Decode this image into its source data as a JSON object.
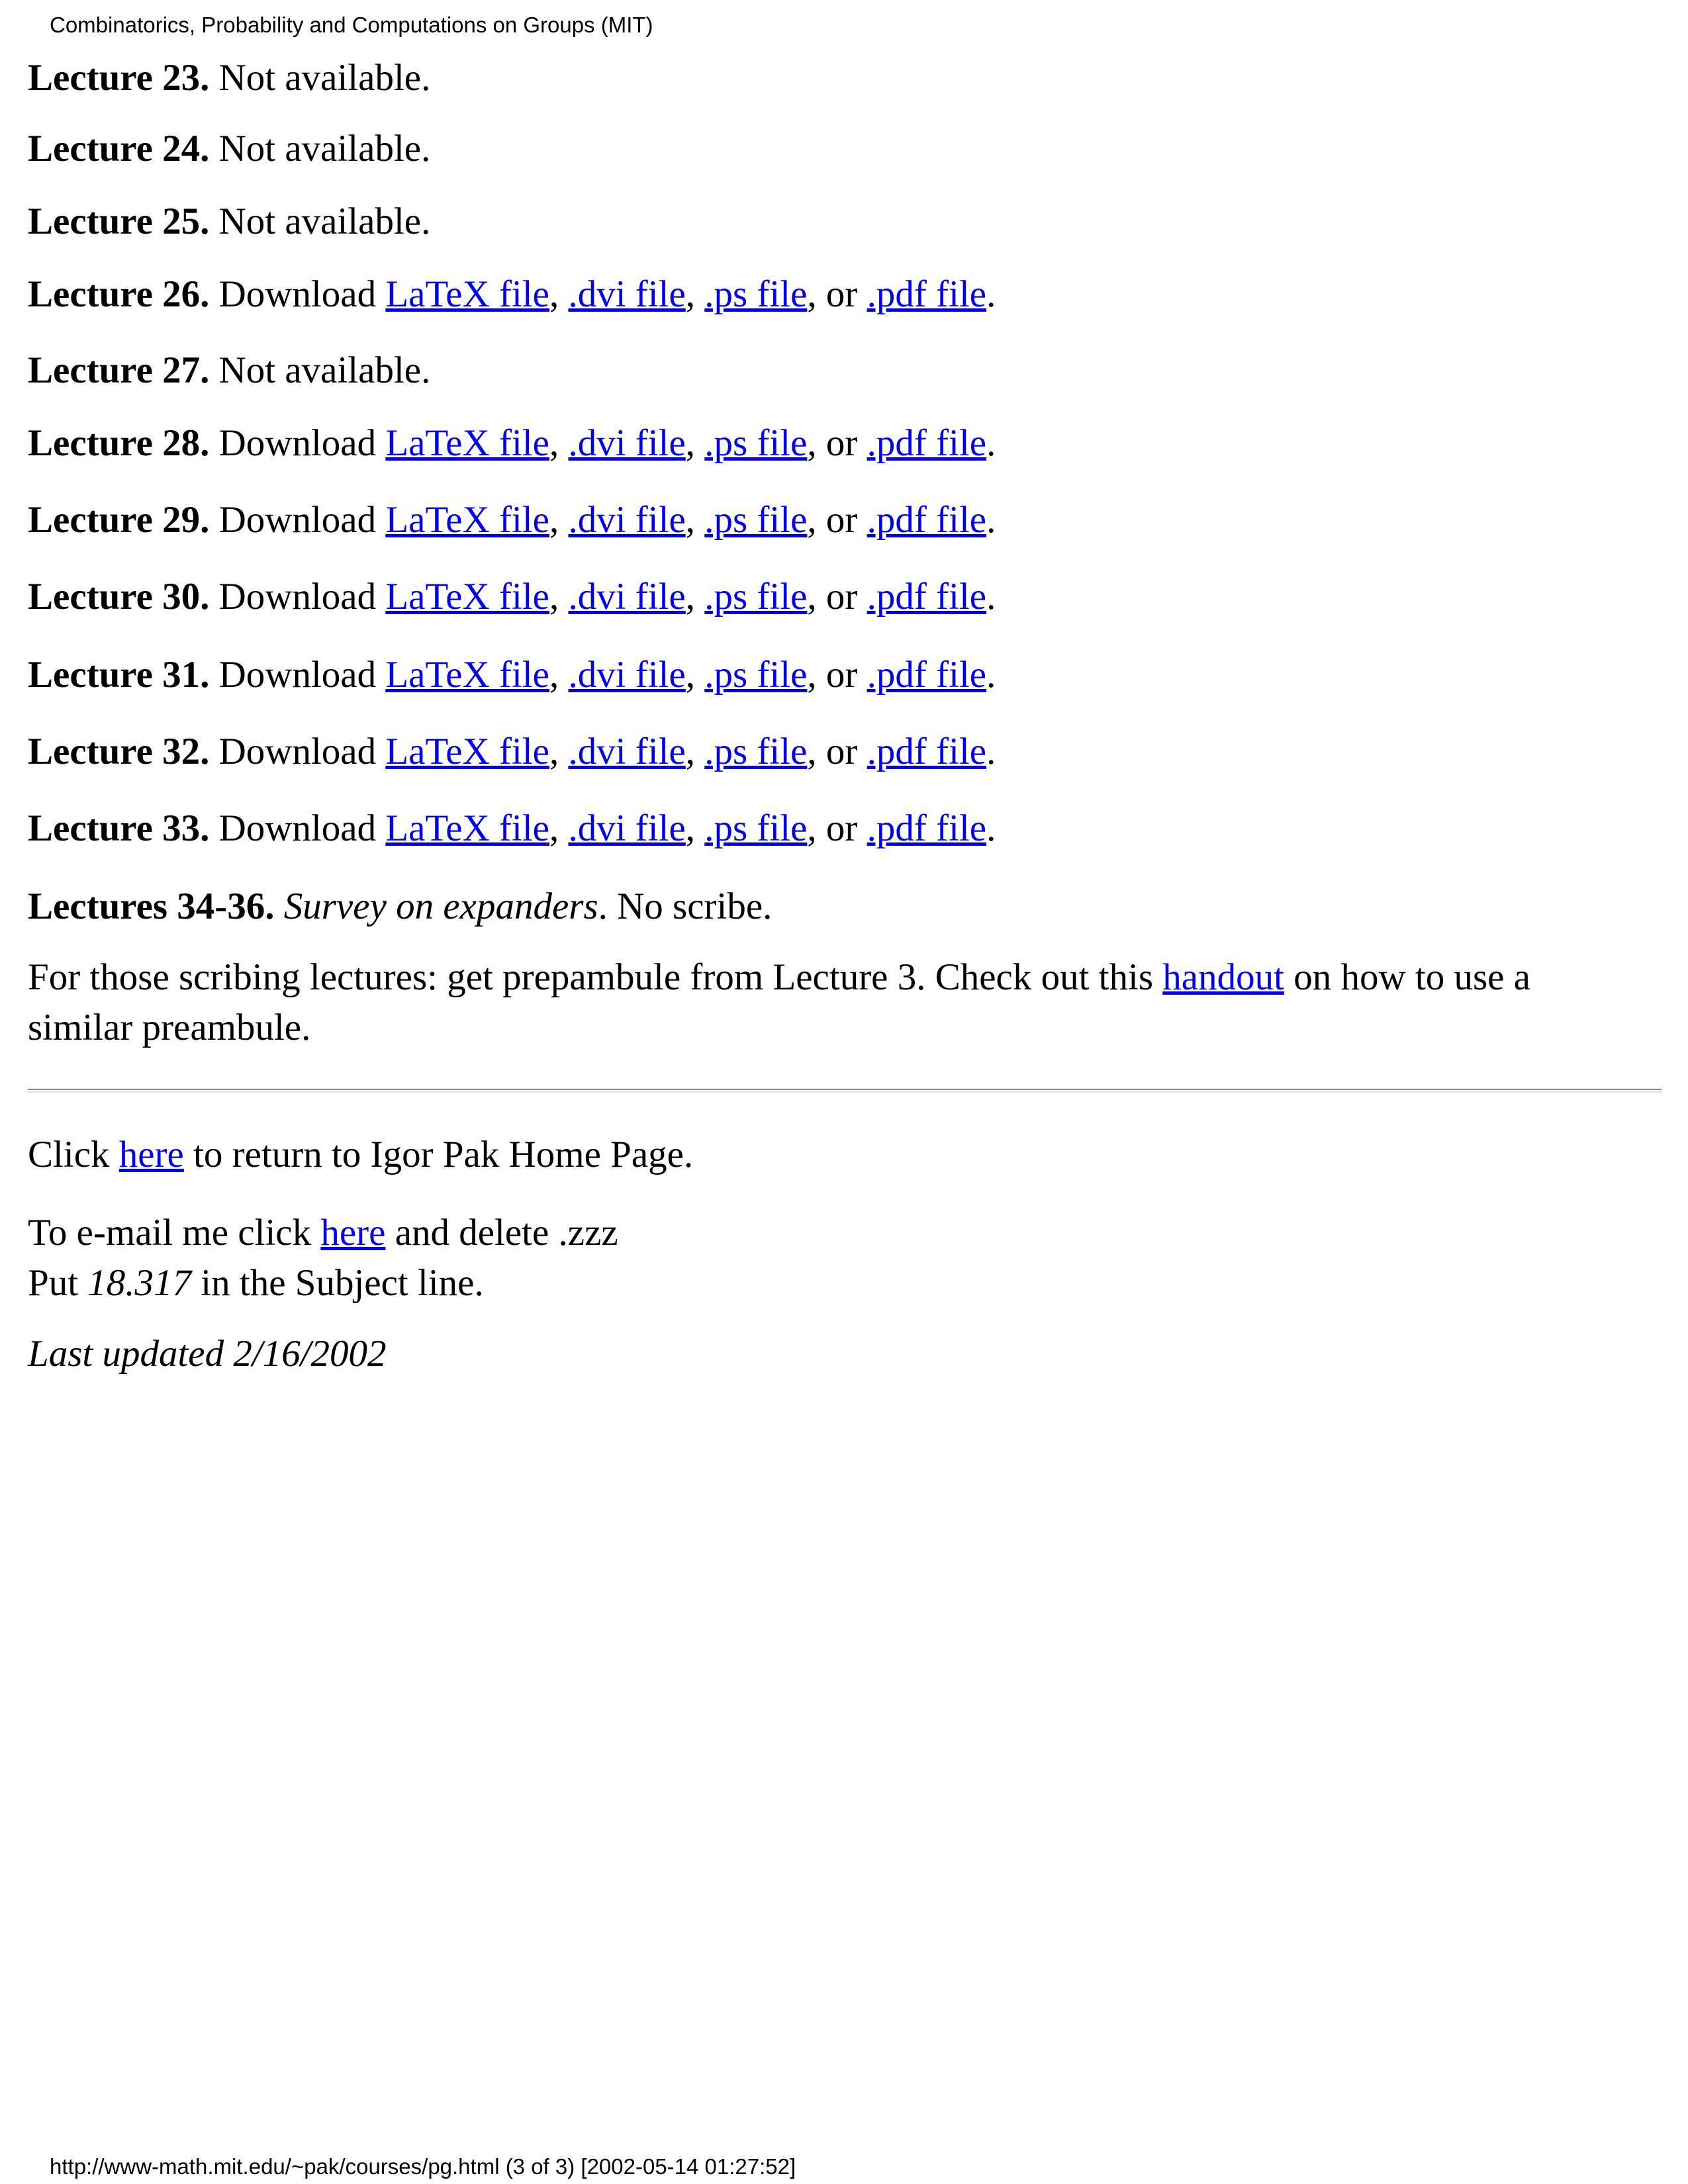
{
  "header": "Combinatorics, Probability and Computations on Groups (MIT)",
  "paragraphs": [
    [
      [
        {
          "text": "Lecture 23.",
          "style": "bold"
        },
        {
          "text": " Not available."
        }
      ]
    ],
    [
      [
        {
          "text": "Lecture 24.",
          "style": "bold"
        },
        {
          "text": " Not available."
        }
      ]
    ],
    [
      [
        {
          "text": "Lecture 25.",
          "style": "bold"
        },
        {
          "text": " Not available."
        }
      ]
    ],
    [
      [
        {
          "text": "Lecture 26.",
          "style": "bold"
        },
        {
          "text": " Download "
        },
        {
          "text": "LaTeX file",
          "style": "link"
        },
        {
          "text": ", "
        },
        {
          "text": ".dvi file",
          "style": "link"
        },
        {
          "text": ", "
        },
        {
          "text": ".ps file",
          "style": "link"
        },
        {
          "text": ", or "
        },
        {
          "text": ".pdf file",
          "style": "link"
        },
        {
          "text": "."
        }
      ]
    ],
    [
      [
        {
          "text": "Lecture 27.",
          "style": "bold"
        },
        {
          "text": " Not available."
        }
      ]
    ],
    [
      [
        {
          "text": "Lecture 28.",
          "style": "bold"
        },
        {
          "text": " Download "
        },
        {
          "text": "LaTeX file",
          "style": "link"
        },
        {
          "text": ", "
        },
        {
          "text": ".dvi file",
          "style": "link"
        },
        {
          "text": ", "
        },
        {
          "text": ".ps file",
          "style": "link"
        },
        {
          "text": ", or "
        },
        {
          "text": ".pdf file",
          "style": "link"
        },
        {
          "text": "."
        }
      ]
    ],
    [
      [
        {
          "text": "Lecture 29.",
          "style": "bold"
        },
        {
          "text": " Download "
        },
        {
          "text": "LaTeX file",
          "style": "link"
        },
        {
          "text": ", "
        },
        {
          "text": ".dvi file",
          "style": "link"
        },
        {
          "text": ", "
        },
        {
          "text": ".ps file",
          "style": "link"
        },
        {
          "text": ", or "
        },
        {
          "text": ".pdf file",
          "style": "link"
        },
        {
          "text": "."
        }
      ]
    ],
    [
      [
        {
          "text": "Lecture 30.",
          "style": "bold"
        },
        {
          "text": " Download "
        },
        {
          "text": "LaTeX file",
          "style": "link"
        },
        {
          "text": ", "
        },
        {
          "text": ".dvi file",
          "style": "link"
        },
        {
          "text": ", "
        },
        {
          "text": ".ps file",
          "style": "link"
        },
        {
          "text": ", or "
        },
        {
          "text": ".pdf file",
          "style": "link"
        },
        {
          "text": "."
        }
      ]
    ],
    [
      [
        {
          "text": "Lecture 31.",
          "style": "bold"
        },
        {
          "text": " Download "
        },
        {
          "text": "LaTeX file",
          "style": "link"
        },
        {
          "text": ", "
        },
        {
          "text": ".dvi file",
          "style": "link"
        },
        {
          "text": ", "
        },
        {
          "text": ".ps file",
          "style": "link"
        },
        {
          "text": ", or "
        },
        {
          "text": ".pdf file",
          "style": "link"
        },
        {
          "text": "."
        }
      ]
    ],
    [
      [
        {
          "text": "Lecture 32.",
          "style": "bold"
        },
        {
          "text": " Download "
        },
        {
          "text": "LaTeX file",
          "style": "link"
        },
        {
          "text": ", "
        },
        {
          "text": ".dvi file",
          "style": "link"
        },
        {
          "text": ", "
        },
        {
          "text": ".ps file",
          "style": "link"
        },
        {
          "text": ", or "
        },
        {
          "text": ".pdf file",
          "style": "link"
        },
        {
          "text": "."
        }
      ]
    ],
    [
      [
        {
          "text": "Lecture 33.",
          "style": "bold"
        },
        {
          "text": " Download "
        },
        {
          "text": "LaTeX file",
          "style": "link"
        },
        {
          "text": ", "
        },
        {
          "text": ".dvi file",
          "style": "link"
        },
        {
          "text": ", "
        },
        {
          "text": ".ps file",
          "style": "link"
        },
        {
          "text": ", or "
        },
        {
          "text": ".pdf file",
          "style": "link"
        },
        {
          "text": "."
        }
      ]
    ],
    [
      [
        {
          "text": "Lectures 34-36.",
          "style": "bold"
        },
        {
          "text": " "
        },
        {
          "text": "Survey on expanders",
          "style": "italic"
        },
        {
          "text": ". No scribe."
        }
      ]
    ],
    [
      [
        {
          "text": "For those scribing lectures: get prepambule from Lecture 3. Check out this "
        },
        {
          "text": "handout",
          "style": "link"
        },
        {
          "text": " on how to use a similar preambule."
        }
      ]
    ],
    [
      [
        {
          "text": "Click "
        },
        {
          "text": "here",
          "style": "link"
        },
        {
          "text": " to return to Igor Pak Home Page."
        }
      ]
    ],
    [
      [
        {
          "text": "To e-mail me click "
        },
        {
          "text": "here",
          "style": "link"
        },
        {
          "text": " and delete .zzz"
        }
      ],
      [
        {
          "text": "Put "
        },
        {
          "text": "18.317",
          "style": "italic"
        },
        {
          "text": " in the Subject line."
        }
      ]
    ],
    [
      [
        {
          "text": "Last updated 2/16/2002",
          "style": "italic"
        }
      ]
    ]
  ],
  "footer": "http://www-math.mit.edu/~pak/courses/pg.html (3 of 3) [2002-05-14 01:27:52]"
}
